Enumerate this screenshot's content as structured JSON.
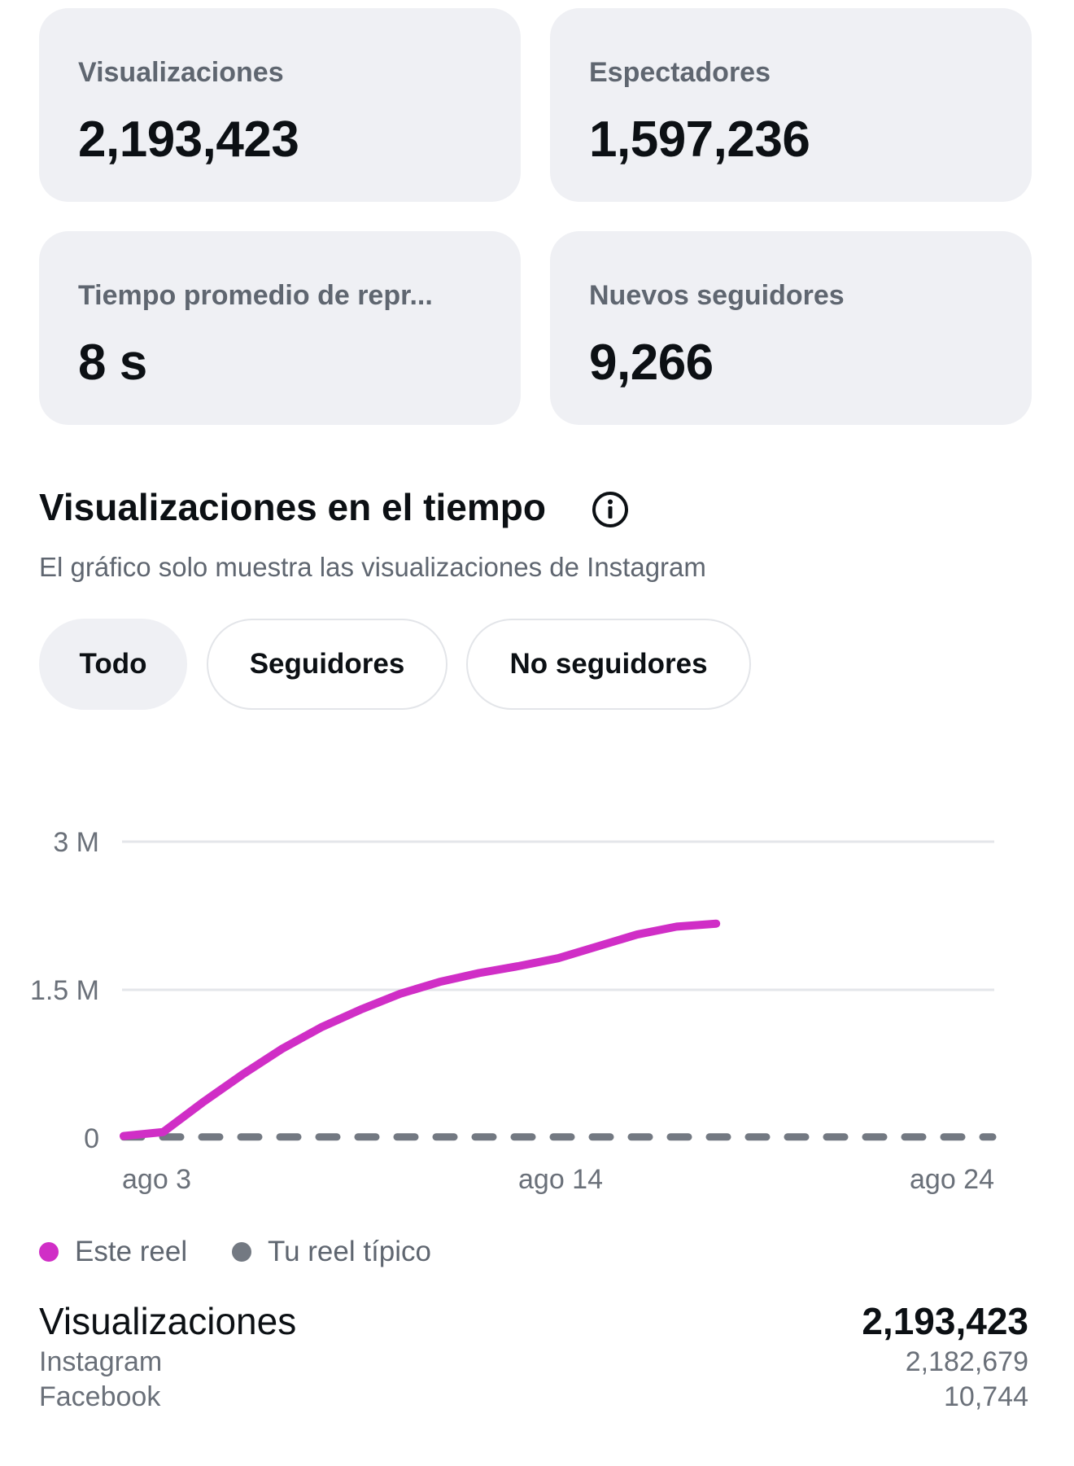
{
  "metrics": {
    "views": {
      "label": "Visualizaciones",
      "value": "2,193,423"
    },
    "viewers": {
      "label": "Espectadores",
      "value": "1,597,236"
    },
    "watch_time": {
      "label": "Tiempo promedio de repr...",
      "value": "8 s"
    },
    "new_followers": {
      "label": "Nuevos seguidores",
      "value": "9,266"
    }
  },
  "section": {
    "title": "Visualizaciones en el tiempo",
    "subtitle": "El gráfico solo muestra las visualizaciones de Instagram",
    "info_icon": "info-icon"
  },
  "filters": [
    {
      "label": "Todo",
      "selected": true
    },
    {
      "label": "Seguidores",
      "selected": false
    },
    {
      "label": "No seguidores",
      "selected": false
    }
  ],
  "chart_data": {
    "type": "line",
    "x_tick_labels": [
      "ago 3",
      "ago 14",
      "ago 24"
    ],
    "y_tick_labels": [
      "3 M",
      "1.5 M",
      "0"
    ],
    "ylim": [
      0,
      3000000
    ],
    "grid": true,
    "legend_placement": "bottom-left",
    "x_days": [
      2,
      3,
      4,
      5,
      6,
      7,
      8,
      9,
      10,
      11,
      12,
      13,
      14,
      15,
      16,
      17,
      18
    ],
    "series": [
      {
        "name": "Este reel",
        "color": "#d02ec6",
        "style": "solid",
        "values": [
          20000,
          60000,
          360000,
          640000,
          900000,
          1120000,
          1300000,
          1460000,
          1580000,
          1670000,
          1740000,
          1820000,
          1940000,
          2060000,
          2140000,
          2170000,
          null
        ]
      },
      {
        "name": "Tu reel típico",
        "color": "#737982",
        "style": "dashed",
        "values": [
          10000,
          10000,
          10000,
          10000,
          10000,
          10000,
          10000,
          10000,
          10000,
          10000,
          10000,
          10000,
          10000,
          10000,
          10000,
          10000,
          10000
        ]
      }
    ],
    "x_end_day": 24
  },
  "legend": [
    {
      "label": "Este reel",
      "color": "#d02ec6"
    },
    {
      "label": "Tu reel típico",
      "color": "#737982"
    }
  ],
  "totals": {
    "label": "Visualizaciones",
    "value": "2,193,423",
    "instagram": {
      "label": "Instagram",
      "value": "2,182,679"
    },
    "facebook": {
      "label": "Facebook",
      "value": "10,744"
    }
  }
}
